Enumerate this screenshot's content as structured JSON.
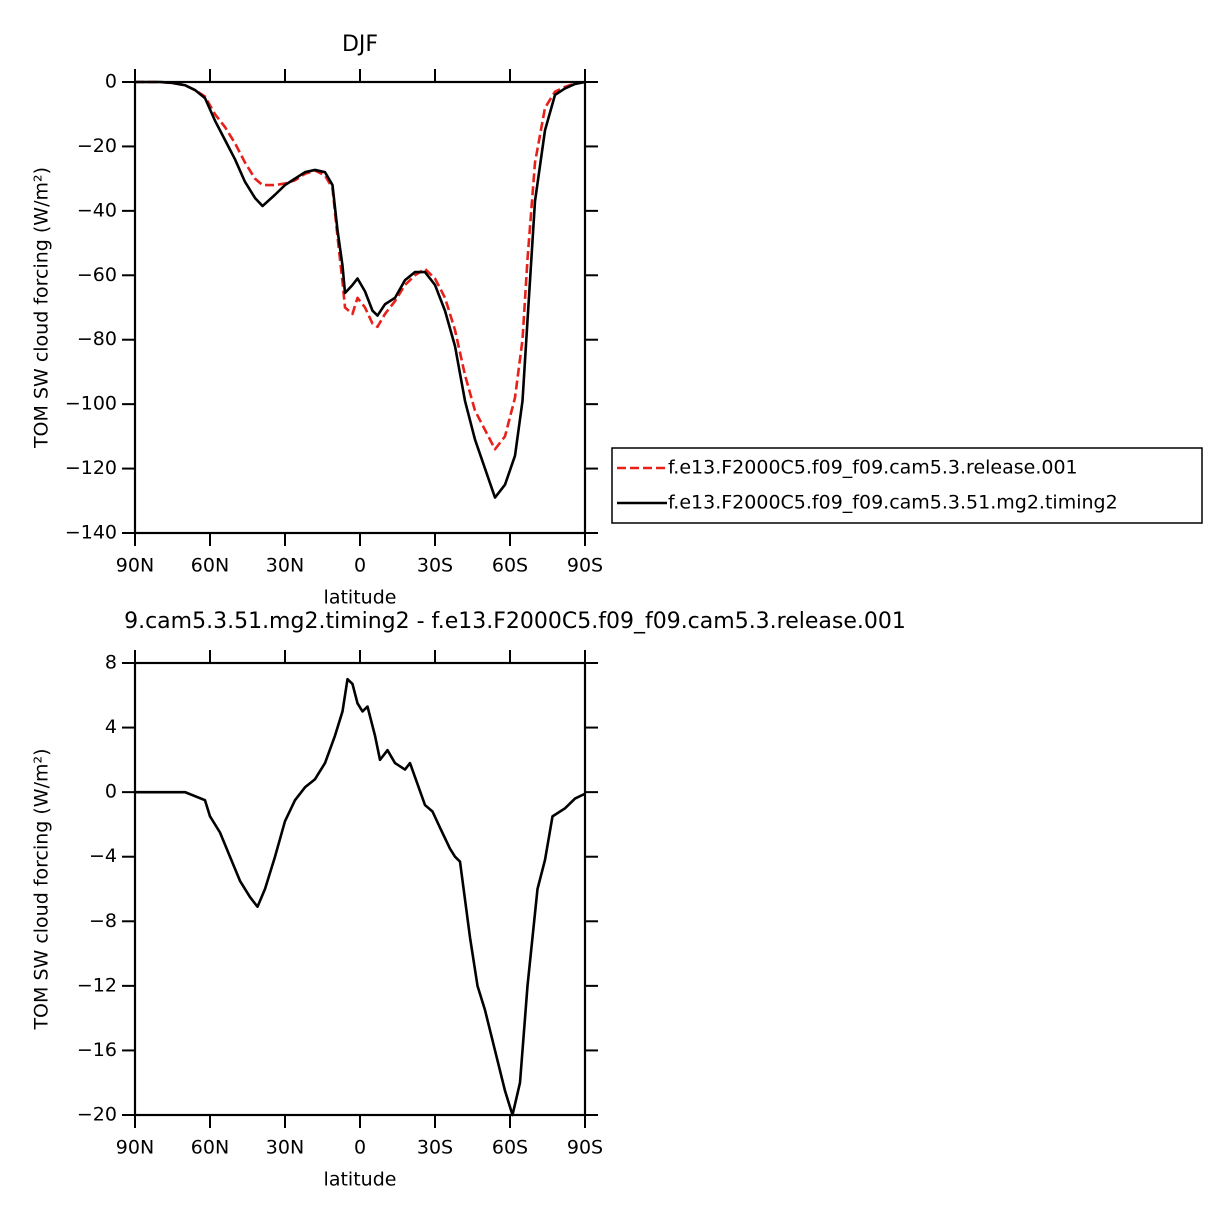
{
  "chart_data": [
    {
      "type": "line",
      "title": "DJF",
      "xlabel": "latitude",
      "ylabel": "TOM SW cloud forcing (W/m²)",
      "x": [
        90,
        80,
        75,
        70,
        66,
        62,
        58,
        54,
        50,
        46,
        42,
        39,
        34,
        30,
        26,
        22,
        18,
        14,
        11,
        9,
        7,
        6,
        3,
        1,
        -2,
        -5,
        -7,
        -10,
        -14,
        -18,
        -22,
        -26,
        -30,
        -34,
        -38,
        -42,
        -46,
        -50,
        -54,
        -58,
        -62,
        -65,
        -67,
        -70,
        -74,
        -78,
        -82,
        -86,
        -90
      ],
      "series": [
        {
          "name": "f.e13.F2000C5.f09_f09.cam5.3.release.001",
          "color": "#e8201a",
          "line_style": "dashed",
          "values": [
            0,
            0,
            -0.3,
            -1,
            -2.5,
            -4.5,
            -10,
            -14,
            -19,
            -25,
            -30,
            -32,
            -32,
            -31.5,
            -30.5,
            -28.5,
            -27.5,
            -29,
            -33,
            -48,
            -62,
            -70,
            -72,
            -67,
            -70,
            -75,
            -76,
            -72,
            -68,
            -63,
            -60,
            -58,
            -61,
            -67,
            -77,
            -91,
            -102,
            -108,
            -114,
            -110,
            -98,
            -80,
            -55,
            -25,
            -8,
            -3,
            -1.5,
            -0.5,
            0
          ]
        },
        {
          "name": "f.e13.F2000C5.f09_f09.cam5.3.51.mg2.timing2",
          "color": "#000000",
          "line_style": "solid",
          "values": [
            0,
            0,
            -0.3,
            -1,
            -2.5,
            -5,
            -12,
            -18,
            -24,
            -31,
            -36,
            -38.5,
            -35,
            -32,
            -30,
            -28,
            -27.3,
            -28,
            -32,
            -46,
            -57,
            -65.5,
            -63,
            -61,
            -65,
            -71,
            -72.5,
            -69,
            -67,
            -61.5,
            -59,
            -59,
            -63,
            -71,
            -82,
            -99,
            -111,
            -120,
            -129,
            -125,
            -116,
            -99,
            -74,
            -37,
            -15,
            -4,
            -2,
            -0.6,
            0
          ]
        }
      ],
      "xlim": [
        90,
        -90
      ],
      "xticks": [
        {
          "value": 90,
          "label": "90N"
        },
        {
          "value": 60,
          "label": "60N"
        },
        {
          "value": 30,
          "label": "30N"
        },
        0,
        {
          "value": -30,
          "label": "30S"
        },
        {
          "value": -60,
          "label": "60S"
        },
        {
          "value": -90,
          "label": "90S"
        }
      ],
      "ylim": [
        -140,
        0
      ],
      "yticks": [
        0,
        {
          "value": -20,
          "label": "−20"
        },
        {
          "value": -40,
          "label": "−40"
        },
        {
          "value": -60,
          "label": "−60"
        },
        {
          "value": -80,
          "label": "−80"
        },
        {
          "value": -100,
          "label": "−100"
        },
        {
          "value": -120,
          "label": "−120"
        },
        {
          "value": -140,
          "label": "−140"
        }
      ],
      "grid": false,
      "legend": "right"
    },
    {
      "type": "line",
      "title": "9.cam5.3.51.mg2.timing2 - f.e13.F2000C5.f09_f09.cam5.3.release.001",
      "xlabel": "latitude",
      "ylabel": "TOM SW cloud forcing (W/m²)",
      "x": [
        90,
        80,
        70,
        62,
        60,
        56,
        52,
        48,
        44,
        41,
        38,
        34,
        30,
        26,
        22,
        18,
        14,
        10,
        7,
        5,
        3,
        1,
        -1,
        -3,
        -6,
        -8,
        -11,
        -14,
        -18,
        -20,
        -23,
        -26,
        -29,
        -32,
        -36,
        -38,
        -40,
        -44,
        -47,
        -50,
        -54,
        -58,
        -61,
        -64,
        -67,
        -71,
        -74,
        -77,
        -82,
        -86,
        -90
      ],
      "series": [
        {
          "color": "#000000",
          "line_style": "solid",
          "values": [
            0,
            0,
            0,
            -0.5,
            -1.5,
            -2.5,
            -4,
            -5.5,
            -6.5,
            -7.1,
            -6,
            -4,
            -1.8,
            -0.5,
            0.3,
            0.8,
            1.8,
            3.5,
            5,
            7,
            6.7,
            5.5,
            5,
            5.3,
            3.5,
            2,
            2.6,
            1.8,
            1.4,
            1.8,
            0.5,
            -0.8,
            -1.2,
            -2.2,
            -3.5,
            -4,
            -4.3,
            -9,
            -12,
            -13.5,
            -16,
            -18.5,
            -20,
            -18,
            -12,
            -6,
            -4.2,
            -1.5,
            -1,
            -0.4,
            -0.1
          ]
        }
      ],
      "xlim": [
        90,
        -90
      ],
      "xticks": [
        {
          "value": 90,
          "label": "90N"
        },
        {
          "value": 60,
          "label": "60N"
        },
        {
          "value": 30,
          "label": "30N"
        },
        0,
        {
          "value": -30,
          "label": "30S"
        },
        {
          "value": -60,
          "label": "60S"
        },
        {
          "value": -90,
          "label": "90S"
        }
      ],
      "ylim": [
        -20,
        8
      ],
      "yticks": [
        8,
        4,
        0,
        {
          "value": -4,
          "label": "−4"
        },
        {
          "value": -8,
          "label": "−8"
        },
        {
          "value": -12,
          "label": "−12"
        },
        {
          "value": -16,
          "label": "−16"
        },
        {
          "value": -20,
          "label": "−20"
        }
      ],
      "grid": false
    }
  ]
}
